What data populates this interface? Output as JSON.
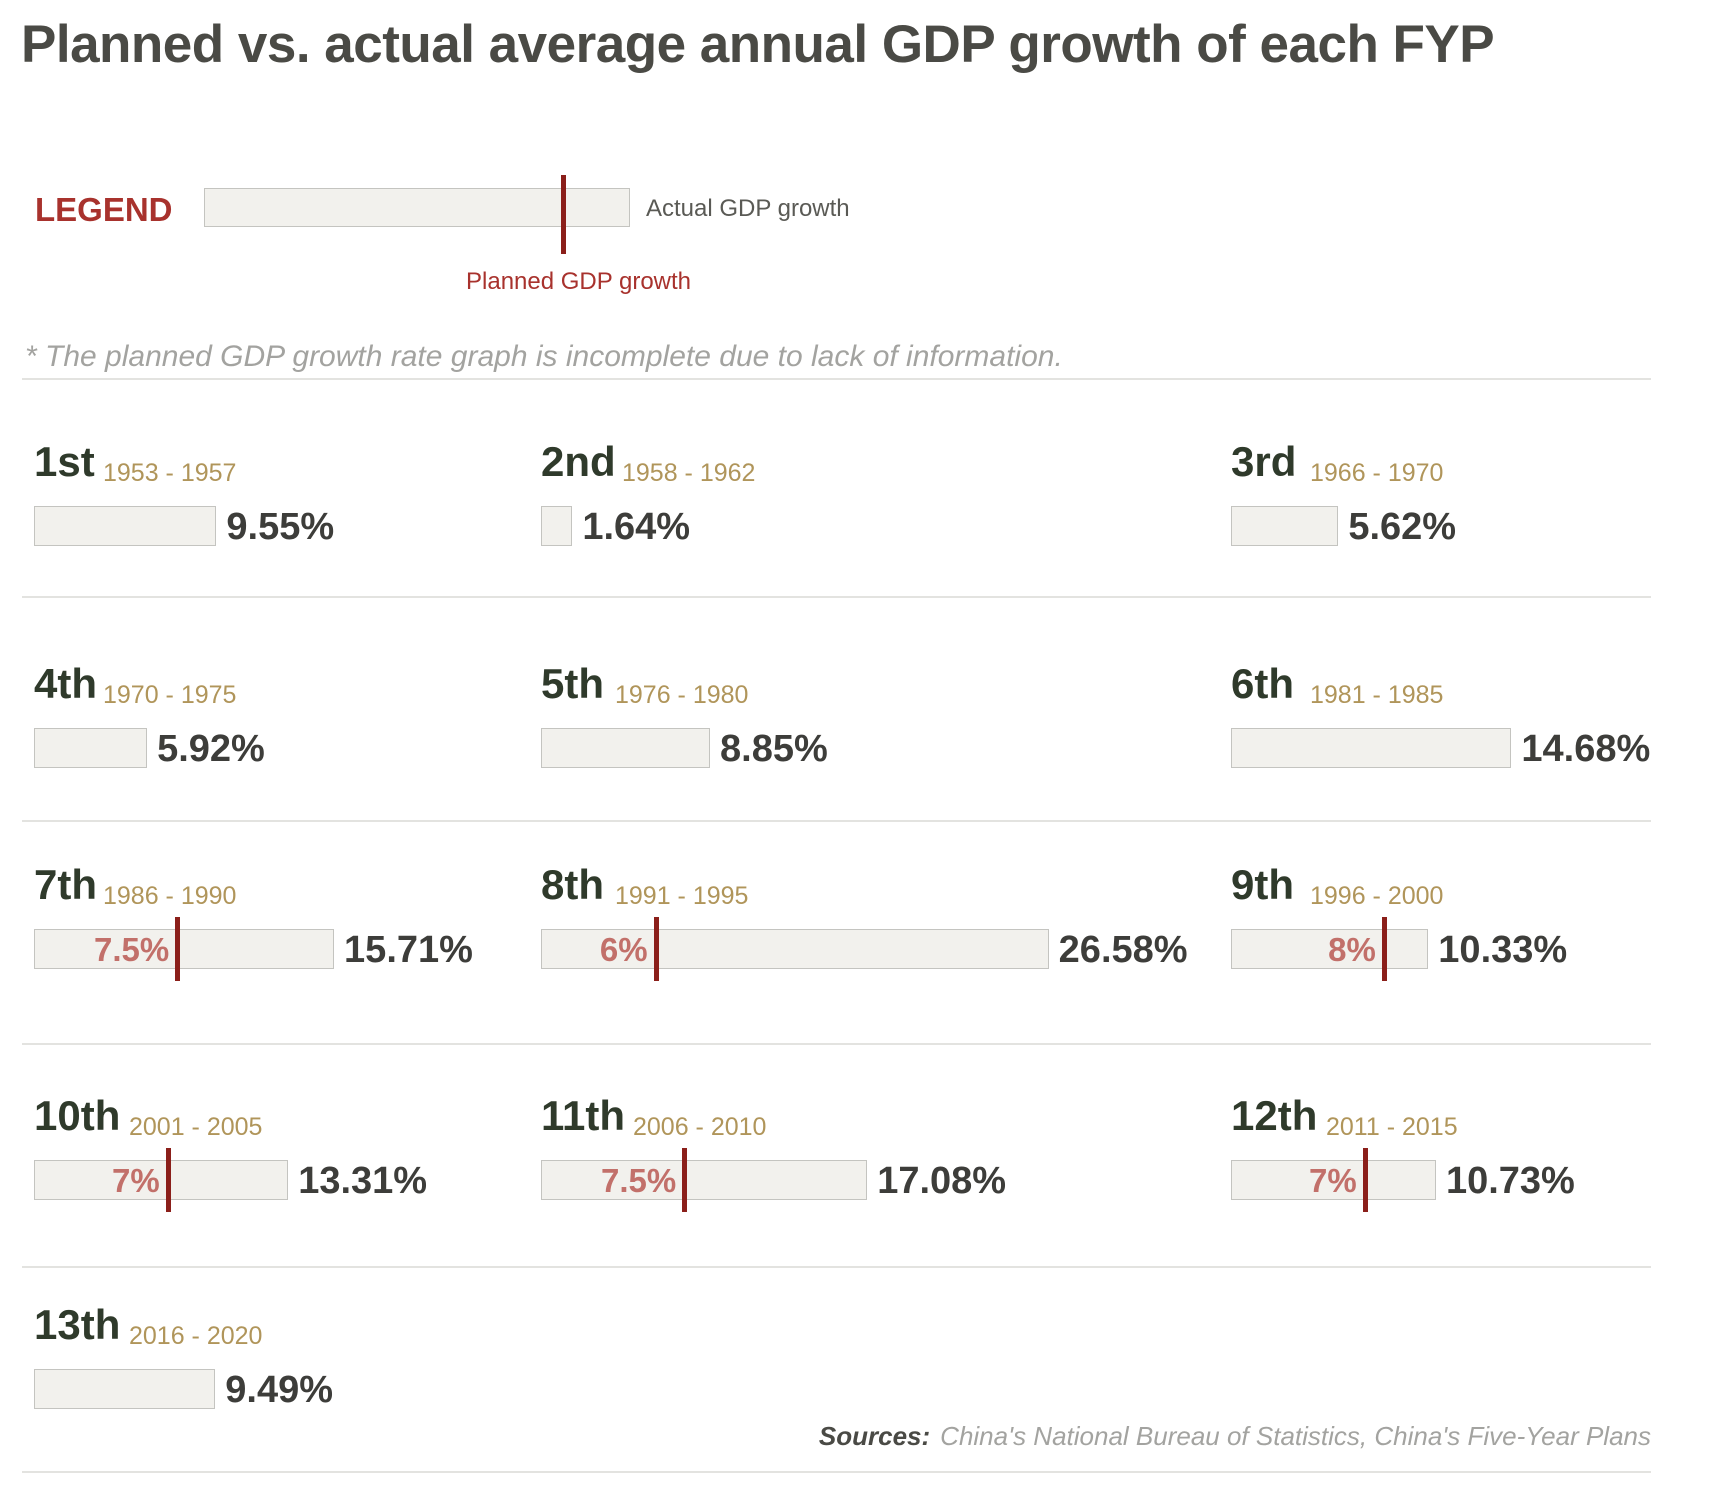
{
  "title": "Planned vs. actual average annual GDP growth of each FYP",
  "legend": {
    "title": "LEGEND",
    "actual_label": "Actual GDP growth",
    "planned_label": "Planned GDP growth"
  },
  "note": "* The planned GDP growth rate graph is incomplete due to lack of information.",
  "sources": {
    "label": "Sources:",
    "text": "China's National Bureau of Statistics, China's Five-Year Plans"
  },
  "colors": {
    "bar_fill": "#f2f1ed",
    "bar_border": "#c4c4c0",
    "planned_marker": "#8b1f1a",
    "planned_text": "#c2706a",
    "years_text": "#b0955a",
    "ordinal_text": "#2f3a2b",
    "legend_red": "#a8322d"
  },
  "chart_data": {
    "type": "bar",
    "title": "Planned vs. actual average annual GDP growth of each FYP",
    "series": [
      {
        "name": "Actual GDP growth",
        "unit": "%"
      },
      {
        "name": "Planned GDP growth",
        "unit": "%"
      }
    ],
    "plans": [
      {
        "ordinal": "1st",
        "years": "1953 - 1957",
        "actual": 9.55,
        "actual_label": "9.55%",
        "planned": null,
        "planned_label": ""
      },
      {
        "ordinal": "2nd",
        "years": "1958 - 1962",
        "actual": 1.64,
        "actual_label": "1.64%",
        "planned": null,
        "planned_label": ""
      },
      {
        "ordinal": "3rd",
        "years": "1966 - 1970",
        "actual": 5.62,
        "actual_label": "5.62%",
        "planned": null,
        "planned_label": ""
      },
      {
        "ordinal": "4th",
        "years": "1970 - 1975",
        "actual": 5.92,
        "actual_label": "5.92%",
        "planned": null,
        "planned_label": ""
      },
      {
        "ordinal": "5th",
        "years": "1976 - 1980",
        "actual": 8.85,
        "actual_label": "8.85%",
        "planned": null,
        "planned_label": ""
      },
      {
        "ordinal": "6th",
        "years": "1981 - 1985",
        "actual": 14.68,
        "actual_label": "14.68%",
        "planned": null,
        "planned_label": ""
      },
      {
        "ordinal": "7th",
        "years": "1986 - 1990",
        "actual": 15.71,
        "actual_label": "15.71%",
        "planned": 7.5,
        "planned_label": "7.5%"
      },
      {
        "ordinal": "8th",
        "years": "1991 - 1995",
        "actual": 26.58,
        "actual_label": "26.58%",
        "planned": 6,
        "planned_label": "6%"
      },
      {
        "ordinal": "9th",
        "years": "1996 - 2000",
        "actual": 10.33,
        "actual_label": "10.33%",
        "planned": 8,
        "planned_label": "8%"
      },
      {
        "ordinal": "10th",
        "years": "2001 - 2005",
        "actual": 13.31,
        "actual_label": "13.31%",
        "planned": 7,
        "planned_label": "7%"
      },
      {
        "ordinal": "11th",
        "years": "2006 - 2010",
        "actual": 17.08,
        "actual_label": "17.08%",
        "planned": 7.5,
        "planned_label": "7.5%"
      },
      {
        "ordinal": "12th",
        "years": "2011 - 2015",
        "actual": 10.73,
        "actual_label": "10.73%",
        "planned": 7,
        "planned_label": "7%"
      },
      {
        "ordinal": "13th",
        "years": "2016 - 2020",
        "actual": 9.49,
        "actual_label": "9.49%",
        "planned": null,
        "planned_label": ""
      }
    ]
  }
}
